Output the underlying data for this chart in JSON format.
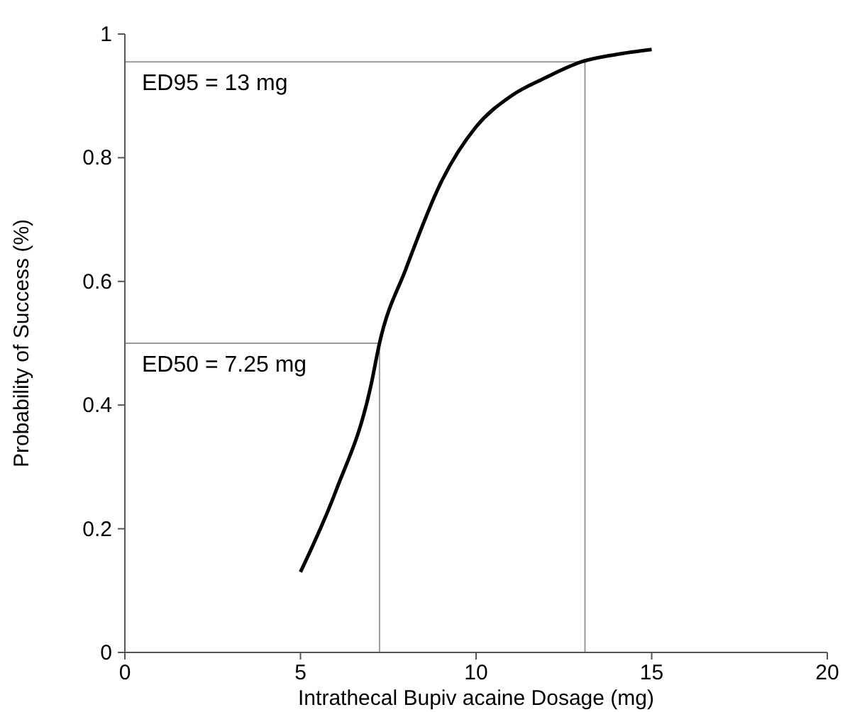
{
  "chart_data": {
    "type": "line",
    "xlabel": "Intrathecal Bupiv acaine Dosage (mg)",
    "ylabel": "Probability of Success (%)",
    "xlim": [
      0,
      20
    ],
    "xticks": [
      0,
      5,
      10,
      15,
      20
    ],
    "ylim": [
      0,
      1
    ],
    "yticks": [
      0,
      0.2,
      0.4,
      0.6,
      0.8,
      1
    ],
    "grid": false,
    "marker": "none",
    "line_style": "solid",
    "series": [
      {
        "color": "#000000",
        "x": [
          5,
          6,
          7,
          7.25,
          8,
          9,
          10,
          11,
          12,
          13,
          14,
          15
        ],
        "values": [
          0.13,
          0.26,
          0.43,
          0.5,
          0.62,
          0.76,
          0.85,
          0.9,
          0.93,
          0.955,
          0.967,
          0.975
        ]
      }
    ],
    "ref_lines": [
      {
        "axis": "y",
        "value": 0.955,
        "label": "ED95 = 13 mg",
        "color": "#999999"
      },
      {
        "axis": "x",
        "value": 13.1,
        "color": "#999999"
      },
      {
        "axis": "y",
        "value": 0.5,
        "label": "ED50 = 7.25 mg",
        "color": "#999999"
      },
      {
        "axis": "x",
        "value": 7.25,
        "color": "#999999"
      }
    ]
  }
}
